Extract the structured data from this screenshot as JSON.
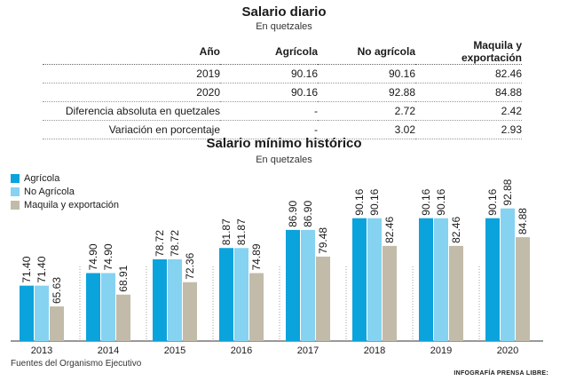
{
  "table": {
    "title": "Salario diario",
    "subtitle": "En quetzales",
    "headers": [
      "Año",
      "Agrícola",
      "No agrícola",
      "Maquila y exportación"
    ],
    "rows": [
      [
        "2019",
        "90.16",
        "90.16",
        "82.46"
      ],
      [
        "2020",
        "90.16",
        "92.88",
        "84.88"
      ],
      [
        "Diferencia absoluta en quetzales",
        "-",
        "2.72",
        "2.42"
      ],
      [
        "Variación en porcentaje",
        "-",
        "3.02",
        "2.93"
      ]
    ]
  },
  "chart_data": {
    "type": "bar",
    "title": "Salario mínimo histórico",
    "subtitle": "En quetzales",
    "categories": [
      "2013",
      "2014",
      "2015",
      "2016",
      "2017",
      "2018",
      "2019",
      "2020"
    ],
    "series": [
      {
        "name": "Agrícola",
        "color": "#0aa3dc",
        "values": [
          71.4,
          74.9,
          78.72,
          81.87,
          86.9,
          90.16,
          90.16,
          90.16
        ]
      },
      {
        "name": "No Agrícola",
        "color": "#86d2f1",
        "values": [
          71.4,
          74.9,
          78.72,
          81.87,
          86.9,
          90.16,
          90.16,
          92.88
        ]
      },
      {
        "name": "Maquila y exportación",
        "color": "#c2bba9",
        "values": [
          65.63,
          68.91,
          72.36,
          74.89,
          79.48,
          82.46,
          82.46,
          84.88
        ]
      }
    ],
    "ylim": [
      56,
      97
    ],
    "legend_position": "top-left",
    "grid": false
  },
  "footer": {
    "source": "Fuentes del Organismo Ejecutivo",
    "credit": "INFOGRAFÍA PRENSA LIBRE:"
  }
}
